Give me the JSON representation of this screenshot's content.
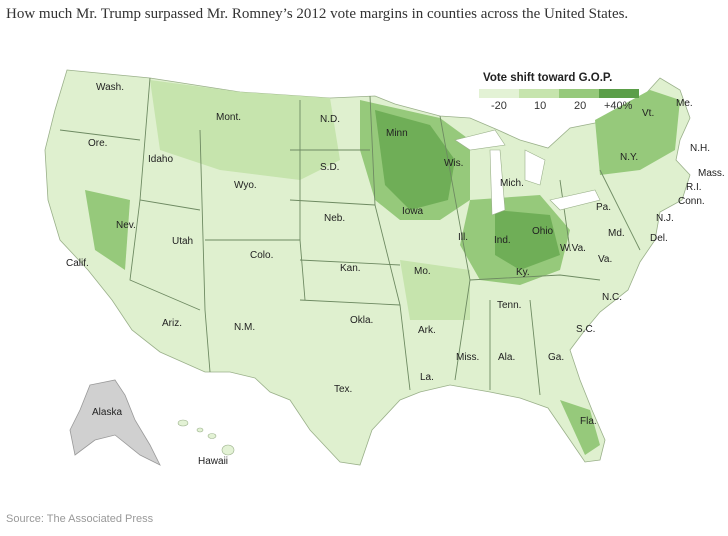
{
  "title": "How much Mr. Trump surpassed Mr. Romney’s 2012 vote margins in counties across the United States.",
  "legend": {
    "title": "Vote shift toward G.O.P.",
    "bins": [
      {
        "label": "-20",
        "color": "#e3f2d5"
      },
      {
        "label": "10",
        "color": "#c6e4ad"
      },
      {
        "label": "20",
        "color": "#96c97b"
      },
      {
        "label": "+40%",
        "color": "#5b9e48"
      }
    ]
  },
  "states": [
    "Wash.",
    "Ore.",
    "Calif.",
    "Idaho",
    "Nev.",
    "Mont.",
    "Wyo.",
    "Utah",
    "Ariz.",
    "Colo.",
    "N.M.",
    "N.D.",
    "S.D.",
    "Neb.",
    "Kan.",
    "Okla.",
    "Tex.",
    "Minn",
    "Iowa",
    "Mo.",
    "Ark.",
    "La.",
    "Wis.",
    "Ill.",
    "Mich.",
    "Ind.",
    "Ohio",
    "Ky.",
    "Tenn.",
    "Miss.",
    "Ala.",
    "Ga.",
    "Fla.",
    "S.C.",
    "N.C.",
    "Va.",
    "W.Va.",
    "Pa.",
    "N.Y.",
    "Vt.",
    "Me.",
    "N.H.",
    "Mass.",
    "R.I.",
    "Conn.",
    "N.J.",
    "Del.",
    "Md.",
    "Alaska",
    "Hawaii"
  ],
  "source": "Source: The Associated Press"
}
